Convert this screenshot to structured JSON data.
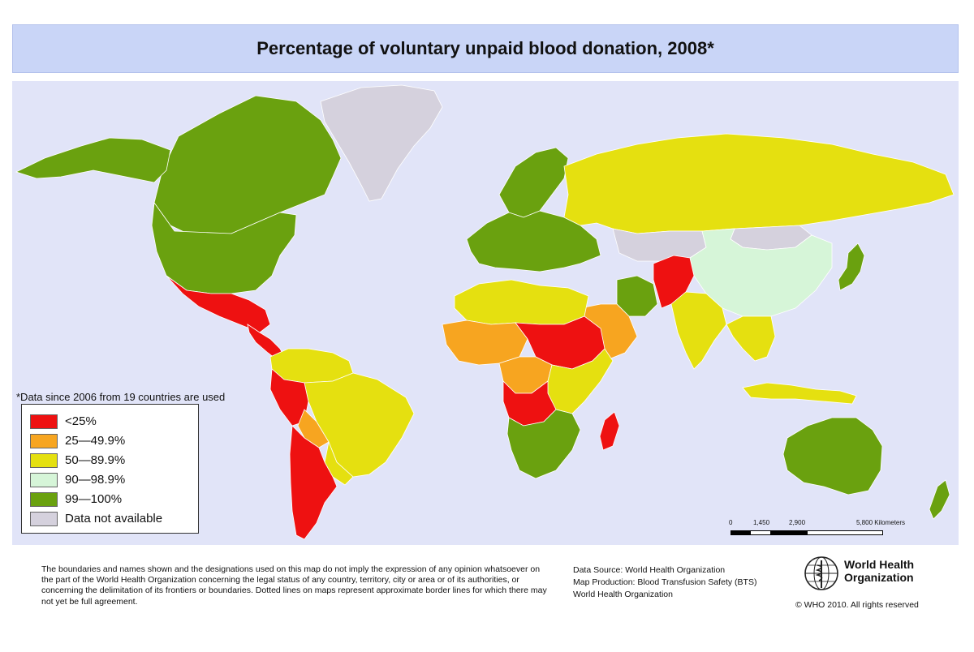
{
  "title": "Percentage of voluntary unpaid blood donation, 2008*",
  "footnote": "*Data since 2006 from 19 countries are used",
  "colors": {
    "ocean": "#e1e4f8",
    "title_bg": "#c9d5f7",
    "lt25": "#ee1111",
    "c25_49": "#f7a520",
    "c50_89": "#e5e010",
    "c90_98": "#d6f5d8",
    "c99_100": "#6aa10f",
    "na": "#d5d1dd"
  },
  "legend": {
    "items": [
      {
        "label": "<25%",
        "color": "#ee1111"
      },
      {
        "label": "25—49.9%",
        "color": "#f7a520"
      },
      {
        "label": "50—89.9%",
        "color": "#e5e010"
      },
      {
        "label": "90—98.9%",
        "color": "#d6f5d8"
      },
      {
        "label": "99—100%",
        "color": "#6aa10f"
      },
      {
        "label": "Data not available",
        "color": "#d5d1dd"
      }
    ]
  },
  "scale": {
    "labels": [
      "0",
      "1,450",
      "2,900",
      "5,800 Kilometers"
    ]
  },
  "disclaimer": "The boundaries and names shown and the designations used on this map do not imply the expression of any opinion whatsoever on the part of the World Health Organization concerning the legal status of any country, territory, city or area or of its authorities, or concerning the delimitation of its frontiers or boundaries.  Dotted lines on maps represent approximate border lines for which there may not yet be full agreement.",
  "source": {
    "line1": "Data Source: World Health Organization",
    "line2": "Map Production: Blood Transfusion Safety (BTS)",
    "line3": "World Health Organization"
  },
  "org": {
    "line1": "World Health",
    "line2": "Organization"
  },
  "copyright": "© WHO 2010. All rights reserved",
  "regions": [
    {
      "id": "canada",
      "cls": "c99_100"
    },
    {
      "id": "alaska",
      "cls": "c99_100"
    },
    {
      "id": "usa",
      "cls": "c99_100"
    },
    {
      "id": "greenland",
      "cls": "na"
    },
    {
      "id": "mexico",
      "cls": "lt25"
    },
    {
      "id": "central-america",
      "cls": "lt25"
    },
    {
      "id": "brazil",
      "cls": "c50_89"
    },
    {
      "id": "colombia-venezuela",
      "cls": "c50_89"
    },
    {
      "id": "bolivia",
      "cls": "c25_49"
    },
    {
      "id": "peru",
      "cls": "lt25"
    },
    {
      "id": "argentina-chile",
      "cls": "lt25"
    },
    {
      "id": "paraguay-uruguay",
      "cls": "c50_89"
    },
    {
      "id": "europe",
      "cls": "c99_100"
    },
    {
      "id": "scandinavia",
      "cls": "c99_100"
    },
    {
      "id": "russia",
      "cls": "c50_89"
    },
    {
      "id": "kazakhstan",
      "cls": "na"
    },
    {
      "id": "china",
      "cls": "c90_98"
    },
    {
      "id": "mongolia",
      "cls": "na"
    },
    {
      "id": "india",
      "cls": "c50_89"
    },
    {
      "id": "iran",
      "cls": "c99_100"
    },
    {
      "id": "pakistan-afghanistan",
      "cls": "lt25"
    },
    {
      "id": "arabia",
      "cls": "c25_49"
    },
    {
      "id": "north-africa",
      "cls": "c50_89"
    },
    {
      "id": "west-africa",
      "cls": "c25_49"
    },
    {
      "id": "sudan-chad",
      "cls": "lt25"
    },
    {
      "id": "central-africa",
      "cls": "c25_49"
    },
    {
      "id": "angola-drc",
      "cls": "lt25"
    },
    {
      "id": "southern-africa",
      "cls": "c99_100"
    },
    {
      "id": "east-africa",
      "cls": "c50_89"
    },
    {
      "id": "madagascar",
      "cls": "lt25"
    },
    {
      "id": "southeast-asia",
      "cls": "c50_89"
    },
    {
      "id": "indonesia",
      "cls": "c50_89"
    },
    {
      "id": "japan",
      "cls": "c99_100"
    },
    {
      "id": "australia",
      "cls": "c99_100"
    },
    {
      "id": "new-zealand",
      "cls": "c99_100"
    }
  ]
}
